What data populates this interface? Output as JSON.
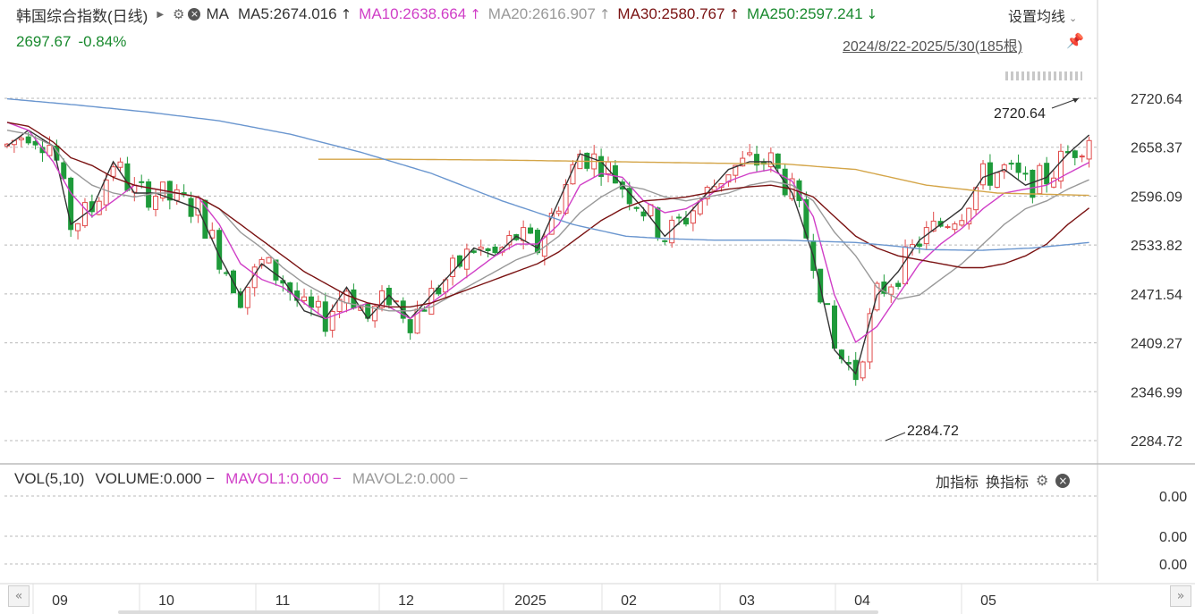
{
  "header": {
    "title": "韩国综合指数(日线)",
    "ma_label": "MA",
    "ma5": {
      "text": "MA5:2674.016",
      "arrow": "↑",
      "color": "#333333"
    },
    "ma10": {
      "text": "MA10:2638.664",
      "arrow": "↑",
      "color": "#d03fc7"
    },
    "ma20": {
      "text": "MA20:2616.907",
      "arrow": "↑",
      "color": "#999999"
    },
    "ma30": {
      "text": "MA30:2580.767",
      "arrow": "↑",
      "color": "#7a1212"
    },
    "ma250": {
      "text": "MA250:2597.241",
      "arrow": "↓",
      "color": "#1a8a2f"
    },
    "settings_label": "设置均线",
    "price": "2697.67",
    "change": "-0.84%",
    "range": "2024/8/22-2025/5/30(185根)"
  },
  "volume_panel": {
    "label": "VOL(5,10)",
    "volume": "VOLUME:0.000",
    "mavol1": "MAVOL1:0.000",
    "mavol2": "MAVOL2:0.000",
    "dash": "−",
    "add_indicator": "加指标",
    "switch_indicator": "换指标",
    "y_labels": [
      "0.00",
      "0.00",
      "0.00"
    ]
  },
  "colors": {
    "up": "#e04a4a",
    "down": "#1e9a3a",
    "ma5": "#333333",
    "ma10": "#d03fc7",
    "ma20": "#999999",
    "ma30": "#7a1212",
    "ma250": "#d4a548",
    "ma_long": "#6a96cf"
  },
  "chart_data": {
    "type": "candlestick",
    "ylim": [
      2284.72,
      2720.64
    ],
    "yticks": [
      "2720.64",
      "2658.37",
      "2596.09",
      "2533.82",
      "2471.54",
      "2409.27",
      "2346.99",
      "2284.72"
    ],
    "xlabels": [
      "09",
      "10",
      "11",
      "12",
      "2025",
      "02",
      "03",
      "04",
      "05"
    ],
    "annotations": {
      "high": "2720.64",
      "low": "2284.72"
    },
    "ma_series": [
      {
        "name": "MA5",
        "points": [
          [
            0,
            2660
          ],
          [
            6,
            2680
          ],
          [
            13,
            2660
          ],
          [
            18,
            2560
          ],
          [
            24,
            2580
          ],
          [
            30,
            2640
          ],
          [
            36,
            2600
          ],
          [
            42,
            2600
          ],
          [
            48,
            2590
          ],
          [
            54,
            2580
          ],
          [
            60,
            2520
          ],
          [
            66,
            2470
          ],
          [
            72,
            2510
          ],
          [
            78,
            2490
          ],
          [
            84,
            2450
          ],
          [
            90,
            2440
          ],
          [
            96,
            2480
          ],
          [
            102,
            2440
          ],
          [
            108,
            2470
          ],
          [
            114,
            2440
          ],
          [
            120,
            2470
          ],
          [
            126,
            2500
          ],
          [
            132,
            2530
          ],
          [
            138,
            2520
          ],
          [
            144,
            2545
          ],
          [
            150,
            2530
          ],
          [
            156,
            2590
          ],
          [
            162,
            2650
          ],
          [
            168,
            2640
          ],
          [
            174,
            2610
          ],
          [
            180,
            2580
          ],
          [
            186,
            2545
          ],
          [
            192,
            2570
          ],
          [
            198,
            2600
          ],
          [
            204,
            2630
          ],
          [
            210,
            2640
          ],
          [
            216,
            2640
          ],
          [
            222,
            2600
          ],
          [
            228,
            2520
          ],
          [
            234,
            2400
          ],
          [
            240,
            2370
          ],
          [
            246,
            2470
          ],
          [
            252,
            2500
          ],
          [
            258,
            2540
          ],
          [
            264,
            2560
          ],
          [
            270,
            2580
          ],
          [
            276,
            2620
          ],
          [
            282,
            2630
          ],
          [
            288,
            2610
          ],
          [
            294,
            2620
          ],
          [
            300,
            2650
          ],
          [
            306,
            2674
          ]
        ]
      },
      {
        "name": "MA10",
        "points": [
          [
            0,
            2690
          ],
          [
            6,
            2680
          ],
          [
            13,
            2640
          ],
          [
            18,
            2600
          ],
          [
            24,
            2570
          ],
          [
            30,
            2590
          ],
          [
            36,
            2610
          ],
          [
            42,
            2605
          ],
          [
            48,
            2600
          ],
          [
            54,
            2595
          ],
          [
            60,
            2560
          ],
          [
            66,
            2510
          ],
          [
            72,
            2490
          ],
          [
            78,
            2480
          ],
          [
            84,
            2460
          ],
          [
            90,
            2440
          ],
          [
            96,
            2450
          ],
          [
            102,
            2460
          ],
          [
            108,
            2455
          ],
          [
            114,
            2440
          ],
          [
            120,
            2460
          ],
          [
            126,
            2480
          ],
          [
            132,
            2500
          ],
          [
            138,
            2520
          ],
          [
            144,
            2535
          ],
          [
            150,
            2535
          ],
          [
            156,
            2560
          ],
          [
            162,
            2610
          ],
          [
            168,
            2625
          ],
          [
            174,
            2620
          ],
          [
            180,
            2590
          ],
          [
            186,
            2575
          ],
          [
            192,
            2580
          ],
          [
            198,
            2595
          ],
          [
            204,
            2615
          ],
          [
            210,
            2625
          ],
          [
            216,
            2630
          ],
          [
            222,
            2615
          ],
          [
            228,
            2570
          ],
          [
            234,
            2470
          ],
          [
            240,
            2410
          ],
          [
            246,
            2430
          ],
          [
            252,
            2470
          ],
          [
            258,
            2510
          ],
          [
            264,
            2535
          ],
          [
            270,
            2555
          ],
          [
            276,
            2580
          ],
          [
            282,
            2600
          ],
          [
            288,
            2605
          ],
          [
            294,
            2610
          ],
          [
            300,
            2625
          ],
          [
            306,
            2639
          ]
        ]
      },
      {
        "name": "MA20",
        "points": [
          [
            0,
            2680
          ],
          [
            6,
            2675
          ],
          [
            13,
            2660
          ],
          [
            18,
            2630
          ],
          [
            24,
            2610
          ],
          [
            30,
            2600
          ],
          [
            36,
            2595
          ],
          [
            42,
            2600
          ],
          [
            48,
            2600
          ],
          [
            54,
            2595
          ],
          [
            60,
            2580
          ],
          [
            66,
            2550
          ],
          [
            72,
            2530
          ],
          [
            78,
            2505
          ],
          [
            84,
            2485
          ],
          [
            90,
            2470
          ],
          [
            96,
            2460
          ],
          [
            102,
            2455
          ],
          [
            108,
            2450
          ],
          [
            114,
            2450
          ],
          [
            120,
            2455
          ],
          [
            126,
            2470
          ],
          [
            132,
            2485
          ],
          [
            138,
            2500
          ],
          [
            144,
            2515
          ],
          [
            150,
            2525
          ],
          [
            156,
            2545
          ],
          [
            162,
            2575
          ],
          [
            168,
            2595
          ],
          [
            174,
            2610
          ],
          [
            180,
            2605
          ],
          [
            186,
            2595
          ],
          [
            192,
            2590
          ],
          [
            198,
            2595
          ],
          [
            204,
            2600
          ],
          [
            210,
            2610
          ],
          [
            216,
            2615
          ],
          [
            222,
            2610
          ],
          [
            228,
            2590
          ],
          [
            234,
            2550
          ],
          [
            240,
            2520
          ],
          [
            246,
            2480
          ],
          [
            252,
            2465
          ],
          [
            258,
            2470
          ],
          [
            264,
            2490
          ],
          [
            270,
            2510
          ],
          [
            276,
            2535
          ],
          [
            282,
            2560
          ],
          [
            288,
            2580
          ],
          [
            294,
            2590
          ],
          [
            300,
            2605
          ],
          [
            306,
            2617
          ]
        ]
      },
      {
        "name": "MA30",
        "points": [
          [
            0,
            2690
          ],
          [
            6,
            2685
          ],
          [
            13,
            2665
          ],
          [
            18,
            2645
          ],
          [
            24,
            2635
          ],
          [
            30,
            2620
          ],
          [
            36,
            2610
          ],
          [
            42,
            2605
          ],
          [
            48,
            2600
          ],
          [
            54,
            2595
          ],
          [
            60,
            2580
          ],
          [
            66,
            2560
          ],
          [
            72,
            2540
          ],
          [
            78,
            2520
          ],
          [
            84,
            2500
          ],
          [
            90,
            2485
          ],
          [
            96,
            2470
          ],
          [
            102,
            2460
          ],
          [
            108,
            2455
          ],
          [
            114,
            2455
          ],
          [
            120,
            2460
          ],
          [
            126,
            2470
          ],
          [
            132,
            2480
          ],
          [
            138,
            2490
          ],
          [
            144,
            2500
          ],
          [
            150,
            2510
          ],
          [
            156,
            2525
          ],
          [
            162,
            2545
          ],
          [
            168,
            2565
          ],
          [
            174,
            2580
          ],
          [
            180,
            2590
          ],
          [
            186,
            2592
          ],
          [
            192,
            2595
          ],
          [
            198,
            2600
          ],
          [
            204,
            2605
          ],
          [
            210,
            2608
          ],
          [
            216,
            2610
          ],
          [
            222,
            2605
          ],
          [
            228,
            2595
          ],
          [
            234,
            2570
          ],
          [
            240,
            2545
          ],
          [
            246,
            2530
          ],
          [
            252,
            2520
          ],
          [
            258,
            2515
          ],
          [
            264,
            2510
          ],
          [
            270,
            2505
          ],
          [
            276,
            2505
          ],
          [
            282,
            2510
          ],
          [
            288,
            2520
          ],
          [
            294,
            2535
          ],
          [
            300,
            2560
          ],
          [
            306,
            2581
          ]
        ]
      },
      {
        "name": "MA250",
        "points": [
          [
            88,
            2643
          ],
          [
            110,
            2643
          ],
          [
            140,
            2642
          ],
          [
            170,
            2640
          ],
          [
            200,
            2638
          ],
          [
            220,
            2637
          ],
          [
            240,
            2630
          ],
          [
            260,
            2610
          ],
          [
            280,
            2600
          ],
          [
            306,
            2597
          ]
        ]
      },
      {
        "name": "MA-long",
        "points": [
          [
            0,
            2720
          ],
          [
            20,
            2712
          ],
          [
            40,
            2703
          ],
          [
            60,
            2692
          ],
          [
            80,
            2675
          ],
          [
            100,
            2652
          ],
          [
            120,
            2625
          ],
          [
            140,
            2590
          ],
          [
            160,
            2560
          ],
          [
            175,
            2545
          ],
          [
            186,
            2542
          ],
          [
            200,
            2540
          ],
          [
            220,
            2540
          ],
          [
            240,
            2537
          ],
          [
            250,
            2533
          ],
          [
            260,
            2528
          ],
          [
            275,
            2527
          ],
          [
            290,
            2530
          ],
          [
            306,
            2537
          ]
        ]
      }
    ]
  }
}
